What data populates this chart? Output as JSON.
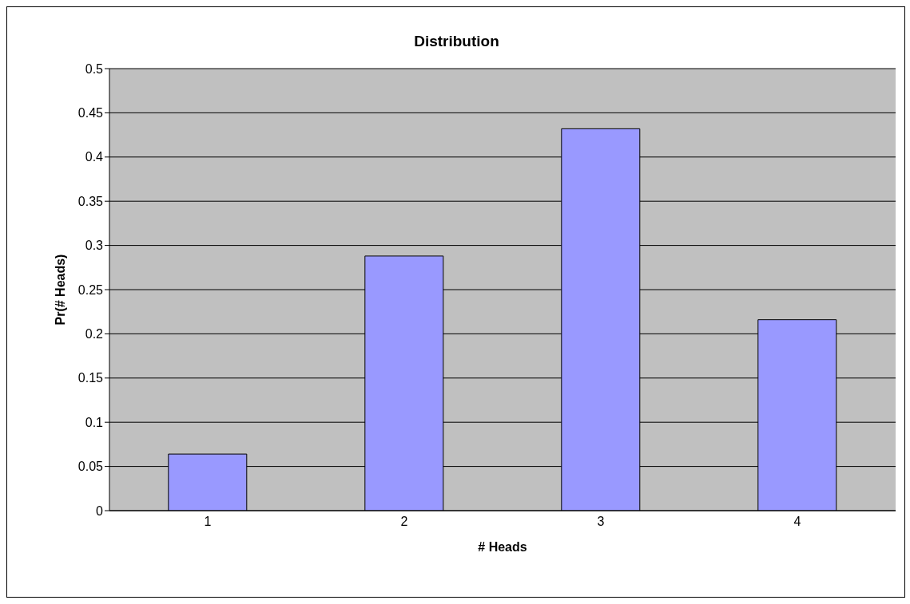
{
  "chart_data": {
    "type": "bar",
    "title": "Distribution",
    "xlabel": "# Heads",
    "ylabel": "Pr(# Heads)",
    "categories": [
      "1",
      "2",
      "3",
      "4"
    ],
    "values": [
      0.064,
      0.288,
      0.432,
      0.216
    ],
    "color": "#9999ff",
    "ylim": [
      0,
      0.5
    ],
    "yticks": [
      0,
      0.05,
      0.1,
      0.15,
      0.2,
      0.25,
      0.3,
      0.35,
      0.4,
      0.45,
      0.5
    ],
    "grid": "y",
    "legend": false
  }
}
